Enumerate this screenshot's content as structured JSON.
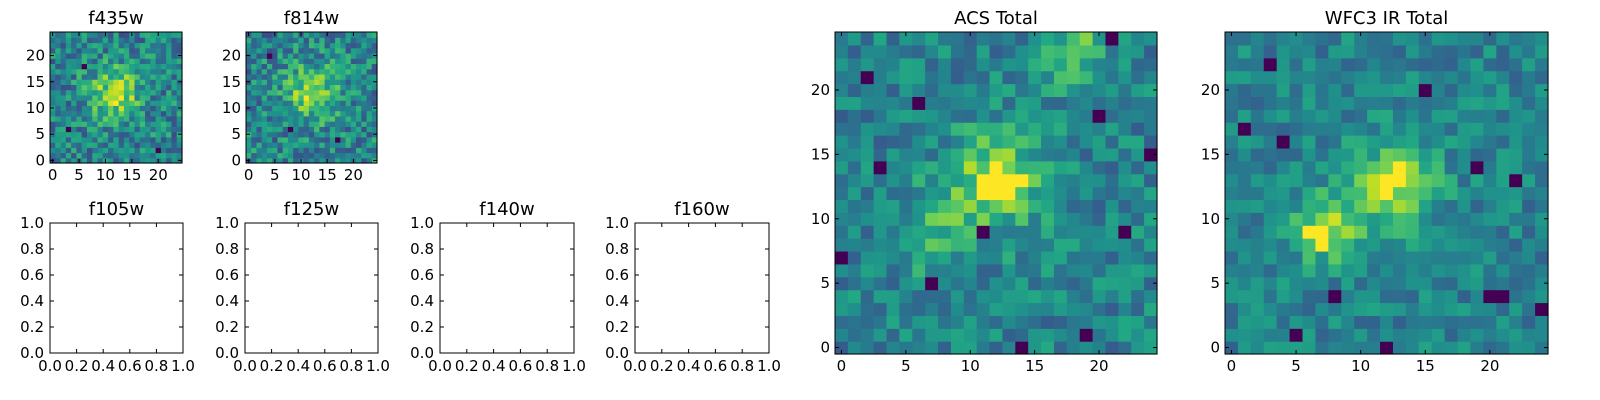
{
  "chart_data": [
    {
      "type": "heatmap",
      "title": "f435w",
      "grid_size": 25,
      "xticks": [
        "0",
        "5",
        "10",
        "15",
        "20"
      ],
      "yticks": [
        "0",
        "5",
        "10",
        "15",
        "20"
      ],
      "colormap": "viridis",
      "seed": 11,
      "noise": 0.22,
      "blobs": [
        {
          "x": 12,
          "y": 13,
          "sigma": 3.2,
          "amp": 0.45
        }
      ],
      "hot_pixels": [],
      "dark_pixels": [
        [
          3,
          6
        ],
        [
          20,
          2
        ],
        [
          6,
          18
        ]
      ]
    },
    {
      "type": "heatmap",
      "title": "f814w",
      "grid_size": 25,
      "xticks": [
        "0",
        "5",
        "10",
        "15",
        "20"
      ],
      "yticks": [
        "0",
        "5",
        "10",
        "15",
        "20"
      ],
      "colormap": "viridis",
      "seed": 23,
      "noise": 0.22,
      "blobs": [
        {
          "x": 12,
          "y": 13,
          "sigma": 3.5,
          "amp": 0.4
        }
      ],
      "hot_pixels": [],
      "dark_pixels": [
        [
          8,
          6
        ],
        [
          17,
          4
        ],
        [
          4,
          20
        ]
      ]
    },
    {
      "type": "empty",
      "title": "f105w",
      "xticks": [
        "0.0",
        "0.2",
        "0.4",
        "0.6",
        "0.8",
        "1.0"
      ],
      "yticks": [
        "0.0",
        "0.2",
        "0.4",
        "0.6",
        "0.8",
        "1.0"
      ]
    },
    {
      "type": "empty",
      "title": "f125w",
      "xticks": [
        "0.0",
        "0.2",
        "0.4",
        "0.6",
        "0.8",
        "1.0"
      ],
      "yticks": [
        "0.0",
        "0.2",
        "0.4",
        "0.6",
        "0.8",
        "1.0"
      ]
    },
    {
      "type": "empty",
      "title": "f140w",
      "xticks": [
        "0.0",
        "0.2",
        "0.4",
        "0.6",
        "0.8",
        "1.0"
      ],
      "yticks": [
        "0.0",
        "0.2",
        "0.4",
        "0.6",
        "0.8",
        "1.0"
      ]
    },
    {
      "type": "empty",
      "title": "f160w",
      "xticks": [
        "0.0",
        "0.2",
        "0.4",
        "0.6",
        "0.8",
        "1.0"
      ],
      "yticks": [
        "0.0",
        "0.2",
        "0.4",
        "0.6",
        "0.8",
        "1.0"
      ]
    },
    {
      "type": "heatmap",
      "title": "ACS Total",
      "grid_size": 25,
      "xticks": [
        "0",
        "5",
        "10",
        "15",
        "20"
      ],
      "yticks": [
        "0",
        "5",
        "10",
        "15",
        "20"
      ],
      "colormap": "viridis",
      "seed": 37,
      "noise": 0.16,
      "blobs": [
        {
          "x": 12,
          "y": 13,
          "sigma": 2.6,
          "amp": 0.4
        },
        {
          "x": 7,
          "y": 9,
          "sigma": 2.2,
          "amp": 0.2
        },
        {
          "x": 18,
          "y": 23,
          "sigma": 1.8,
          "amp": 0.3
        }
      ],
      "hot_pixels": [
        [
          11,
          13
        ],
        [
          12,
          13
        ],
        [
          13,
          13
        ],
        [
          11,
          12
        ],
        [
          12,
          12
        ],
        [
          13,
          12
        ],
        [
          12,
          14
        ],
        [
          14,
          13
        ]
      ],
      "dark_pixels": [
        [
          2,
          21
        ],
        [
          6,
          19
        ],
        [
          0,
          7
        ],
        [
          7,
          5
        ],
        [
          14,
          0
        ],
        [
          20,
          18
        ],
        [
          19,
          1
        ],
        [
          11,
          9
        ],
        [
          21,
          24
        ],
        [
          24,
          15
        ],
        [
          3,
          14
        ],
        [
          22,
          9
        ]
      ]
    },
    {
      "type": "heatmap",
      "title": "WFC3 IR Total",
      "grid_size": 25,
      "xticks": [
        "0",
        "5",
        "10",
        "15",
        "20"
      ],
      "yticks": [
        "0",
        "5",
        "10",
        "15",
        "20"
      ],
      "colormap": "viridis",
      "seed": 53,
      "noise": 0.14,
      "blobs": [
        {
          "x": 13,
          "y": 13,
          "sigma": 2.2,
          "amp": 0.35
        },
        {
          "x": 7,
          "y": 9,
          "sigma": 1.6,
          "amp": 0.35
        },
        {
          "x": 10,
          "y": 11,
          "sigma": 2.5,
          "amp": 0.15
        }
      ],
      "hot_pixels": [
        [
          12,
          13
        ],
        [
          13,
          13
        ],
        [
          13,
          14
        ],
        [
          12,
          12
        ],
        [
          7,
          9
        ],
        [
          7,
          8
        ],
        [
          6,
          9
        ]
      ],
      "dark_pixels": [
        [
          1,
          17
        ],
        [
          4,
          16
        ],
        [
          20,
          4
        ],
        [
          21,
          4
        ],
        [
          19,
          14
        ],
        [
          8,
          4
        ],
        [
          5,
          1
        ],
        [
          12,
          0
        ],
        [
          15,
          20
        ],
        [
          24,
          3
        ],
        [
          3,
          22
        ],
        [
          22,
          13
        ]
      ]
    }
  ]
}
